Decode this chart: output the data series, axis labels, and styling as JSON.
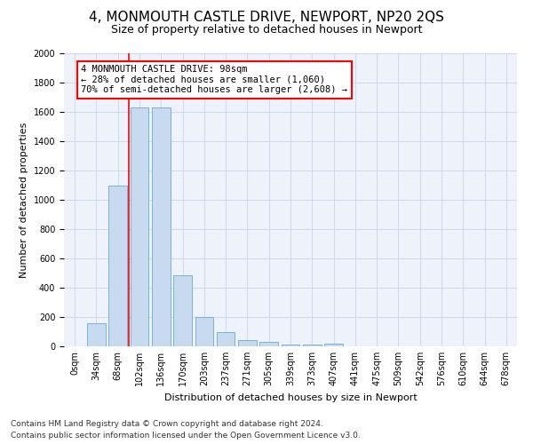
{
  "title": "4, MONMOUTH CASTLE DRIVE, NEWPORT, NP20 2QS",
  "subtitle": "Size of property relative to detached houses in Newport",
  "xlabel": "Distribution of detached houses by size in Newport",
  "ylabel": "Number of detached properties",
  "bar_color": "#c8daf0",
  "bar_edge_color": "#6aaad4",
  "categories": [
    "0sqm",
    "34sqm",
    "68sqm",
    "102sqm",
    "136sqm",
    "170sqm",
    "203sqm",
    "237sqm",
    "271sqm",
    "305sqm",
    "339sqm",
    "373sqm",
    "407sqm",
    "441sqm",
    "475sqm",
    "509sqm",
    "542sqm",
    "576sqm",
    "610sqm",
    "644sqm",
    "678sqm"
  ],
  "values": [
    0,
    160,
    1095,
    1630,
    1630,
    485,
    200,
    100,
    42,
    28,
    15,
    10,
    18,
    0,
    0,
    0,
    0,
    0,
    0,
    0,
    0
  ],
  "ylim": [
    0,
    2000
  ],
  "yticks": [
    0,
    200,
    400,
    600,
    800,
    1000,
    1200,
    1400,
    1600,
    1800,
    2000
  ],
  "vline_index": 3,
  "vline_color": "red",
  "annotation_text": "4 MONMOUTH CASTLE DRIVE: 98sqm\n← 28% of detached houses are smaller (1,060)\n70% of semi-detached houses are larger (2,608) →",
  "annotation_box_color": "white",
  "annotation_border_color": "red",
  "grid_color": "#c8d4e8",
  "background_color": "#edf2fb",
  "footer_line1": "Contains HM Land Registry data © Crown copyright and database right 2024.",
  "footer_line2": "Contains public sector information licensed under the Open Government Licence v3.0.",
  "title_fontsize": 11,
  "subtitle_fontsize": 9,
  "axis_label_fontsize": 8,
  "tick_fontsize": 7,
  "annotation_fontsize": 7.5,
  "footer_fontsize": 6.5,
  "ylabel_fontsize": 8
}
